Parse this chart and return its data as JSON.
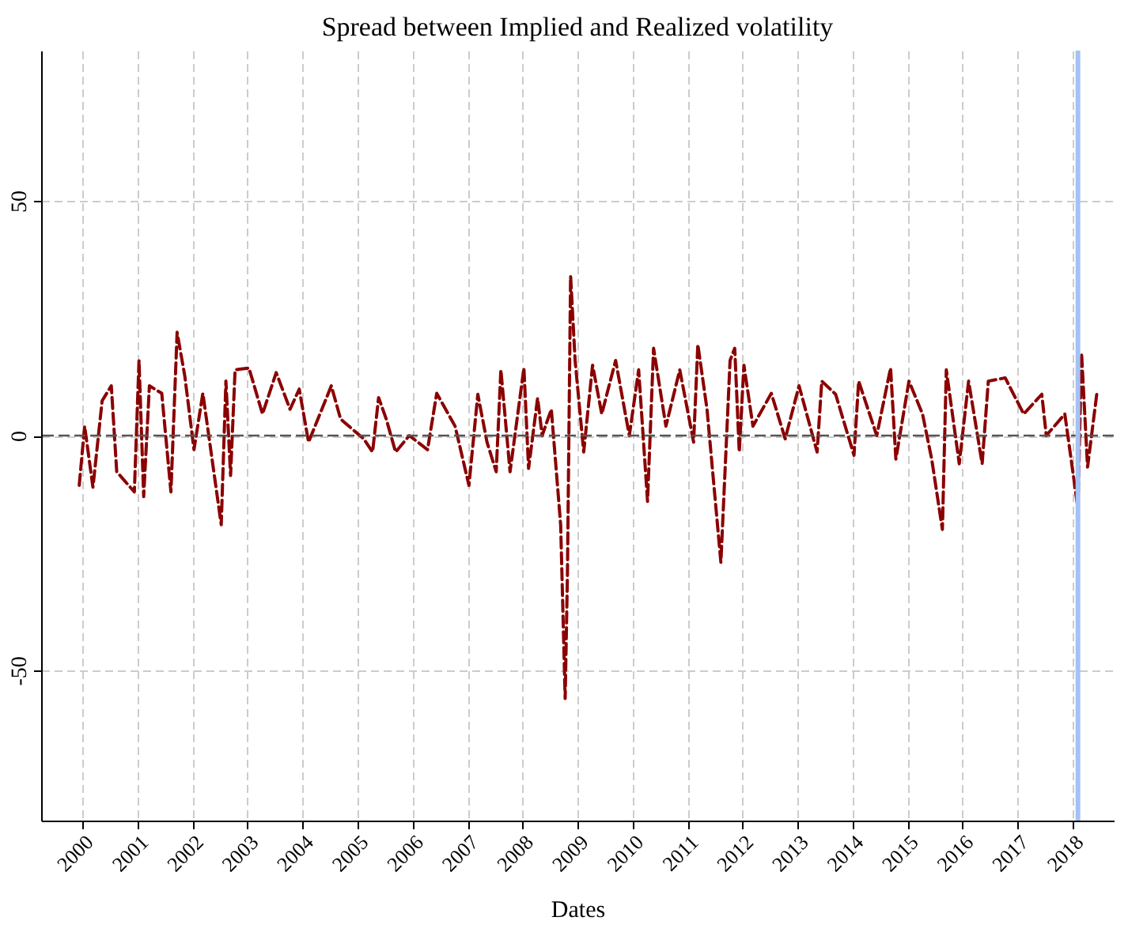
{
  "chart_data": {
    "type": "line",
    "title": "Spread between Implied and Realized volatility",
    "xlabel": "Dates",
    "x": [
      "1999-12-10",
      "2000-01-15",
      "2000-03-10",
      "2000-05-10",
      "2000-07-10",
      "2000-08-15",
      "2000-12-10",
      "2001-01-10",
      "2001-02-10",
      "2001-03-20",
      "2001-06-10",
      "2001-08-10",
      "2001-09-20",
      "2001-11-10",
      "2002-01-10",
      "2002-03-10",
      "2002-05-10",
      "2002-07-10",
      "2002-08-10",
      "2002-09-10",
      "2002-10-10",
      "2003-01-10",
      "2003-04-10",
      "2003-07-10",
      "2003-10-10",
      "2003-12-10",
      "2004-02-10",
      "2004-07-10",
      "2004-09-10",
      "2005-02-10",
      "2005-04-10",
      "2005-05-20",
      "2005-07-10",
      "2005-09-10",
      "2005-12-10",
      "2006-04-10",
      "2006-06-10",
      "2006-10-10",
      "2007-01-10",
      "2007-03-10",
      "2007-05-10",
      "2007-07-10",
      "2007-08-10",
      "2007-10-10",
      "2008-01-10",
      "2008-02-10",
      "2008-04-10",
      "2008-05-10",
      "2008-07-10",
      "2008-09-10",
      "2008-10-10",
      "2008-10-25",
      "2008-11-15",
      "2008-12-15",
      "2009-02-10",
      "2009-04-10",
      "2009-06-10",
      "2009-09-10",
      "2009-12-10",
      "2010-02-10",
      "2010-04-10",
      "2010-05-20",
      "2010-08-10",
      "2010-11-10",
      "2011-02-10",
      "2011-03-10",
      "2011-05-10",
      "2011-08-10",
      "2011-10-10",
      "2011-11-10",
      "2011-12-10",
      "2012-01-10",
      "2012-03-10",
      "2012-07-10",
      "2012-10-10",
      "2013-01-10",
      "2013-05-10",
      "2013-06-10",
      "2013-09-10",
      "2014-01-10",
      "2014-02-10",
      "2014-06-10",
      "2014-09-10",
      "2014-10-15",
      "2015-01-10",
      "2015-04-10",
      "2015-06-10",
      "2015-08-20",
      "2015-09-15",
      "2015-12-10",
      "2016-02-10",
      "2016-05-10",
      "2016-06-20",
      "2016-10-10",
      "2017-02-10",
      "2017-06-10",
      "2017-07-10",
      "2017-11-10",
      "2018-02-05",
      "2018-03-01",
      "2018-04-10",
      "2018-06-10"
    ],
    "series": [
      {
        "color": "#8b0000",
        "line_style": "dashed",
        "values": [
          -10.6,
          2,
          -11,
          7.4,
          10.6,
          -7.7,
          -12,
          16,
          -13,
          10.6,
          9,
          -12,
          22,
          12.7,
          -3,
          9,
          -5,
          -19,
          11.6,
          -8.5,
          14,
          14.4,
          4.6,
          13.4,
          5.6,
          9.9,
          -1.4,
          10.6,
          3.5,
          -0.7,
          -3.5,
          8.1,
          3.5,
          -3.5,
          0,
          -3,
          9,
          2,
          -10.6,
          8.8,
          -1.4,
          -7.7,
          14,
          -7.7,
          14.4,
          -7,
          8,
          0,
          5.6,
          -19,
          -56,
          -29.6,
          34,
          16,
          -3.5,
          15,
          4.6,
          16,
          0,
          14,
          -14,
          18.6,
          2,
          14,
          -1.4,
          19.4,
          5.6,
          -27,
          16,
          18.6,
          -3.5,
          15,
          2,
          9,
          -0.7,
          10.6,
          -3.5,
          11.6,
          8.8,
          -4.2,
          11.6,
          0,
          14.4,
          -5,
          11.6,
          4.6,
          -5,
          -20,
          14,
          -6,
          11.6,
          -6,
          11.6,
          12.3,
          4.6,
          8.8,
          0,
          4.6,
          -15.5,
          17.6,
          -6.7,
          8.8
        ]
      }
    ],
    "xlim": [
      "1999-04-01",
      "2018-10-01"
    ],
    "xticks": [
      "2000",
      "2001",
      "2002",
      "2003",
      "2004",
      "2005",
      "2006",
      "2007",
      "2008",
      "2009",
      "2010",
      "2011",
      "2012",
      "2013",
      "2014",
      "2015",
      "2016",
      "2017",
      "2018"
    ],
    "ylim": [
      -82,
      82
    ],
    "yticks": [
      -50,
      0,
      50
    ],
    "ref_lines": [
      {
        "axis": "y",
        "value": 0,
        "color": "#555555",
        "line_style": "dashed"
      },
      {
        "axis": "x",
        "value": "2018-02-05",
        "color": "#a4c2f4",
        "line_style": "solid"
      }
    ],
    "grid": true
  }
}
